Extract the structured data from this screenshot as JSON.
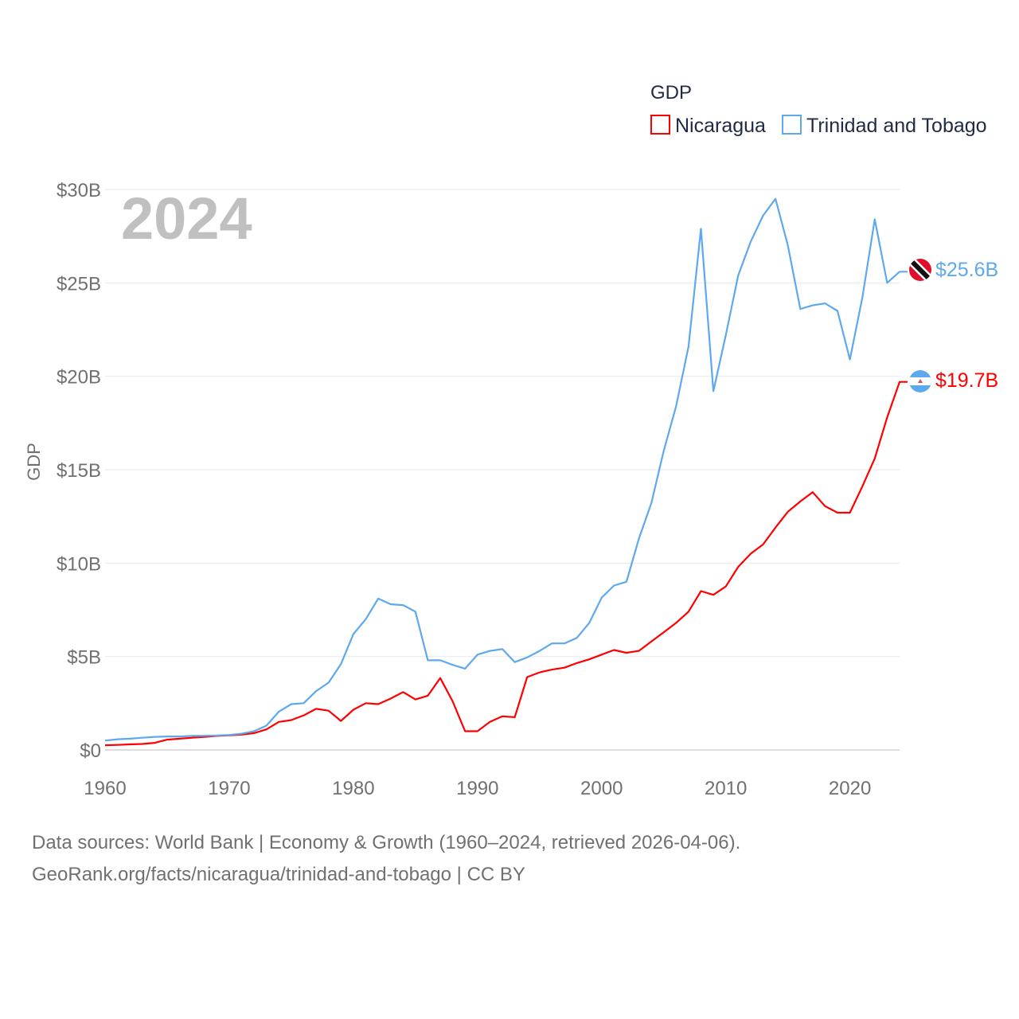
{
  "chart_data": {
    "type": "line",
    "title": "GDP",
    "year_label": "2024",
    "ylabel": "GDP",
    "xlabel": "",
    "xlim": [
      1960,
      2024
    ],
    "ylim": [
      0,
      30
    ],
    "x_ticks": [
      1960,
      1970,
      1980,
      1990,
      2000,
      2010,
      2020
    ],
    "x_tick_labels": [
      "1960",
      "1970",
      "1980",
      "1990",
      "2000",
      "2010",
      "2020"
    ],
    "y_ticks": [
      0,
      5,
      10,
      15,
      20,
      25,
      30
    ],
    "y_tick_labels": [
      "$0",
      "$5B",
      "$10B",
      "$15B",
      "$20B",
      "$25B",
      "$30B"
    ],
    "grid": true,
    "legend_position": "top-right",
    "x_start": 1960,
    "series": [
      {
        "name": "Nicaragua",
        "color": "#ff0000",
        "end_label": "$19.7B",
        "values": [
          0.25,
          0.27,
          0.3,
          0.32,
          0.38,
          0.55,
          0.6,
          0.65,
          0.7,
          0.75,
          0.78,
          0.82,
          0.9,
          1.1,
          1.5,
          1.6,
          1.85,
          2.2,
          2.1,
          1.55,
          2.15,
          2.5,
          2.45,
          2.75,
          3.1,
          2.7,
          2.9,
          3.85,
          2.6,
          1.0,
          1.0,
          1.5,
          1.8,
          1.75,
          3.9,
          4.15,
          4.3,
          4.4,
          4.65,
          4.85,
          5.1,
          5.35,
          5.2,
          5.3,
          5.8,
          6.3,
          6.8,
          7.4,
          8.5,
          8.3,
          8.75,
          9.8,
          10.5,
          11.0,
          11.9,
          12.75,
          13.3,
          13.8,
          13.05,
          12.7,
          12.7,
          14.1,
          15.6,
          17.8,
          19.7
        ]
      },
      {
        "name": "Trinidad and Tobago",
        "color": "#5ea8ee",
        "end_label": "$25.6B",
        "values": [
          0.5,
          0.57,
          0.6,
          0.65,
          0.7,
          0.72,
          0.72,
          0.75,
          0.76,
          0.77,
          0.8,
          0.87,
          1.0,
          1.3,
          2.05,
          2.45,
          2.5,
          3.15,
          3.6,
          4.6,
          6.2,
          7.0,
          8.1,
          7.8,
          7.75,
          7.4,
          4.8,
          4.8,
          4.55,
          4.35,
          5.1,
          5.3,
          5.4,
          4.7,
          4.95,
          5.3,
          5.7,
          5.7,
          6.0,
          6.8,
          8.15,
          8.8,
          9.0,
          11.3,
          13.2,
          16.0,
          18.4,
          21.6,
          27.9,
          19.2,
          22.2,
          25.4,
          27.2,
          28.6,
          29.5,
          27.0,
          23.6,
          23.8,
          23.9,
          23.5,
          20.9,
          24.2,
          28.4,
          25.0,
          25.6
        ]
      }
    ]
  },
  "footer": {
    "line1": "Data sources: World Bank | Economy & Growth (1960–2024, retrieved 2026-04-06).",
    "line2": "GeoRank.org/facts/nicaragua/trinidad-and-tobago | CC BY"
  }
}
